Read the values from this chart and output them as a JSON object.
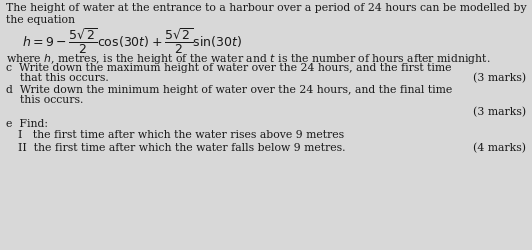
{
  "bg_color": "#d8d8d8",
  "text_color": "#1a1a1a",
  "fs": 7.8,
  "fs_eq": 9.0,
  "line1": "The height of water at the entrance to a harbour over a period of 24 hours can be modelled by",
  "line2": "the equation",
  "where_line": "where h, metres, is the height of the water and t is the number of hours after midnight.",
  "c_line1": "c  Write down the maximum height of water over the 24 hours, and the first time",
  "c_line2": "    that this occurs.",
  "c_marks": "(3 marks)",
  "d_line1": "d  Write down the minimum height of water over the 24 hours, and the final time",
  "d_line2": "    this occurs.",
  "d_marks": "(3 marks)",
  "e_line": "e  Find:",
  "e_i": "I   the first time after which the water rises above 9 metres",
  "e_ii": "II  the first time after which the water falls below 9 metres.",
  "e_marks": "(4 marks)"
}
